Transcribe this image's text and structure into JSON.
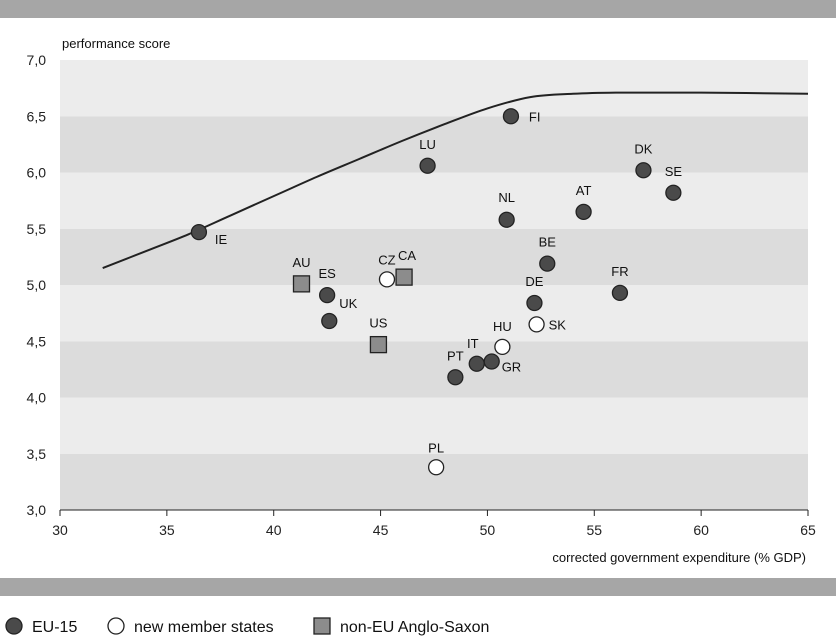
{
  "chart_data": {
    "type": "scatter",
    "title": "",
    "xlabel": "corrected government expenditure (% GDP)",
    "ylabel": "performance score",
    "xlim": [
      30,
      65
    ],
    "ylim": [
      3.0,
      7.0
    ],
    "x_ticks": [
      "30",
      "35",
      "40",
      "45",
      "50",
      "55",
      "60",
      "65"
    ],
    "y_ticks": [
      "3,0",
      "3,5",
      "4,0",
      "4,5",
      "5,0",
      "5,5",
      "6,0",
      "6,5",
      "7,0"
    ],
    "grid": "alternating horizontal bands",
    "legend_position": "bottom",
    "legend": [
      {
        "group": "eu15",
        "label": "EU-15",
        "marker": "circle",
        "fill": "#4a4a4a"
      },
      {
        "group": "new",
        "label": "new member states",
        "marker": "circle",
        "fill": "#ffffff"
      },
      {
        "group": "anglo",
        "label": "non-EU Anglo-Saxon",
        "marker": "square",
        "fill": "#8c8c8c"
      }
    ],
    "frontier": [
      {
        "x": 32.0,
        "y": 5.15
      },
      {
        "x": 34.0,
        "y": 5.3
      },
      {
        "x": 36.0,
        "y": 5.45
      },
      {
        "x": 38.0,
        "y": 5.62
      },
      {
        "x": 40.0,
        "y": 5.79
      },
      {
        "x": 42.0,
        "y": 5.96
      },
      {
        "x": 44.0,
        "y": 6.12
      },
      {
        "x": 46.0,
        "y": 6.28
      },
      {
        "x": 48.0,
        "y": 6.43
      },
      {
        "x": 50.0,
        "y": 6.57
      },
      {
        "x": 52.0,
        "y": 6.67
      },
      {
        "x": 54.0,
        "y": 6.7
      },
      {
        "x": 56.0,
        "y": 6.71
      },
      {
        "x": 60.0,
        "y": 6.71
      },
      {
        "x": 65.0,
        "y": 6.7
      }
    ],
    "points": [
      {
        "label": "IE",
        "x": 36.5,
        "y": 5.47,
        "group": "eu15"
      },
      {
        "label": "LU",
        "x": 47.2,
        "y": 6.06,
        "group": "eu15"
      },
      {
        "label": "FI",
        "x": 51.1,
        "y": 6.5,
        "group": "eu15"
      },
      {
        "label": "DK",
        "x": 57.3,
        "y": 6.02,
        "group": "eu15"
      },
      {
        "label": "SE",
        "x": 58.7,
        "y": 5.82,
        "group": "eu15"
      },
      {
        "label": "NL",
        "x": 50.9,
        "y": 5.58,
        "group": "eu15"
      },
      {
        "label": "AT",
        "x": 54.5,
        "y": 5.65,
        "group": "eu15"
      },
      {
        "label": "BE",
        "x": 52.8,
        "y": 5.19,
        "group": "eu15"
      },
      {
        "label": "DE",
        "x": 52.2,
        "y": 4.84,
        "group": "eu15"
      },
      {
        "label": "FR",
        "x": 56.2,
        "y": 4.93,
        "group": "eu15"
      },
      {
        "label": "ES",
        "x": 42.5,
        "y": 4.91,
        "group": "eu15"
      },
      {
        "label": "UK",
        "x": 42.6,
        "y": 4.68,
        "group": "eu15"
      },
      {
        "label": "IT",
        "x": 49.5,
        "y": 4.3,
        "group": "eu15"
      },
      {
        "label": "GR",
        "x": 50.2,
        "y": 4.32,
        "group": "eu15"
      },
      {
        "label": "PT",
        "x": 48.5,
        "y": 4.18,
        "group": "eu15"
      },
      {
        "label": "CZ",
        "x": 45.3,
        "y": 5.05,
        "group": "new"
      },
      {
        "label": "HU",
        "x": 50.7,
        "y": 4.45,
        "group": "new"
      },
      {
        "label": "SK",
        "x": 52.3,
        "y": 4.65,
        "group": "new"
      },
      {
        "label": "PL",
        "x": 47.6,
        "y": 3.38,
        "group": "new"
      },
      {
        "label": "AU",
        "x": 41.3,
        "y": 5.01,
        "group": "anglo"
      },
      {
        "label": "CA",
        "x": 46.1,
        "y": 5.07,
        "group": "anglo"
      },
      {
        "label": "US",
        "x": 44.9,
        "y": 4.47,
        "group": "anglo"
      }
    ]
  }
}
